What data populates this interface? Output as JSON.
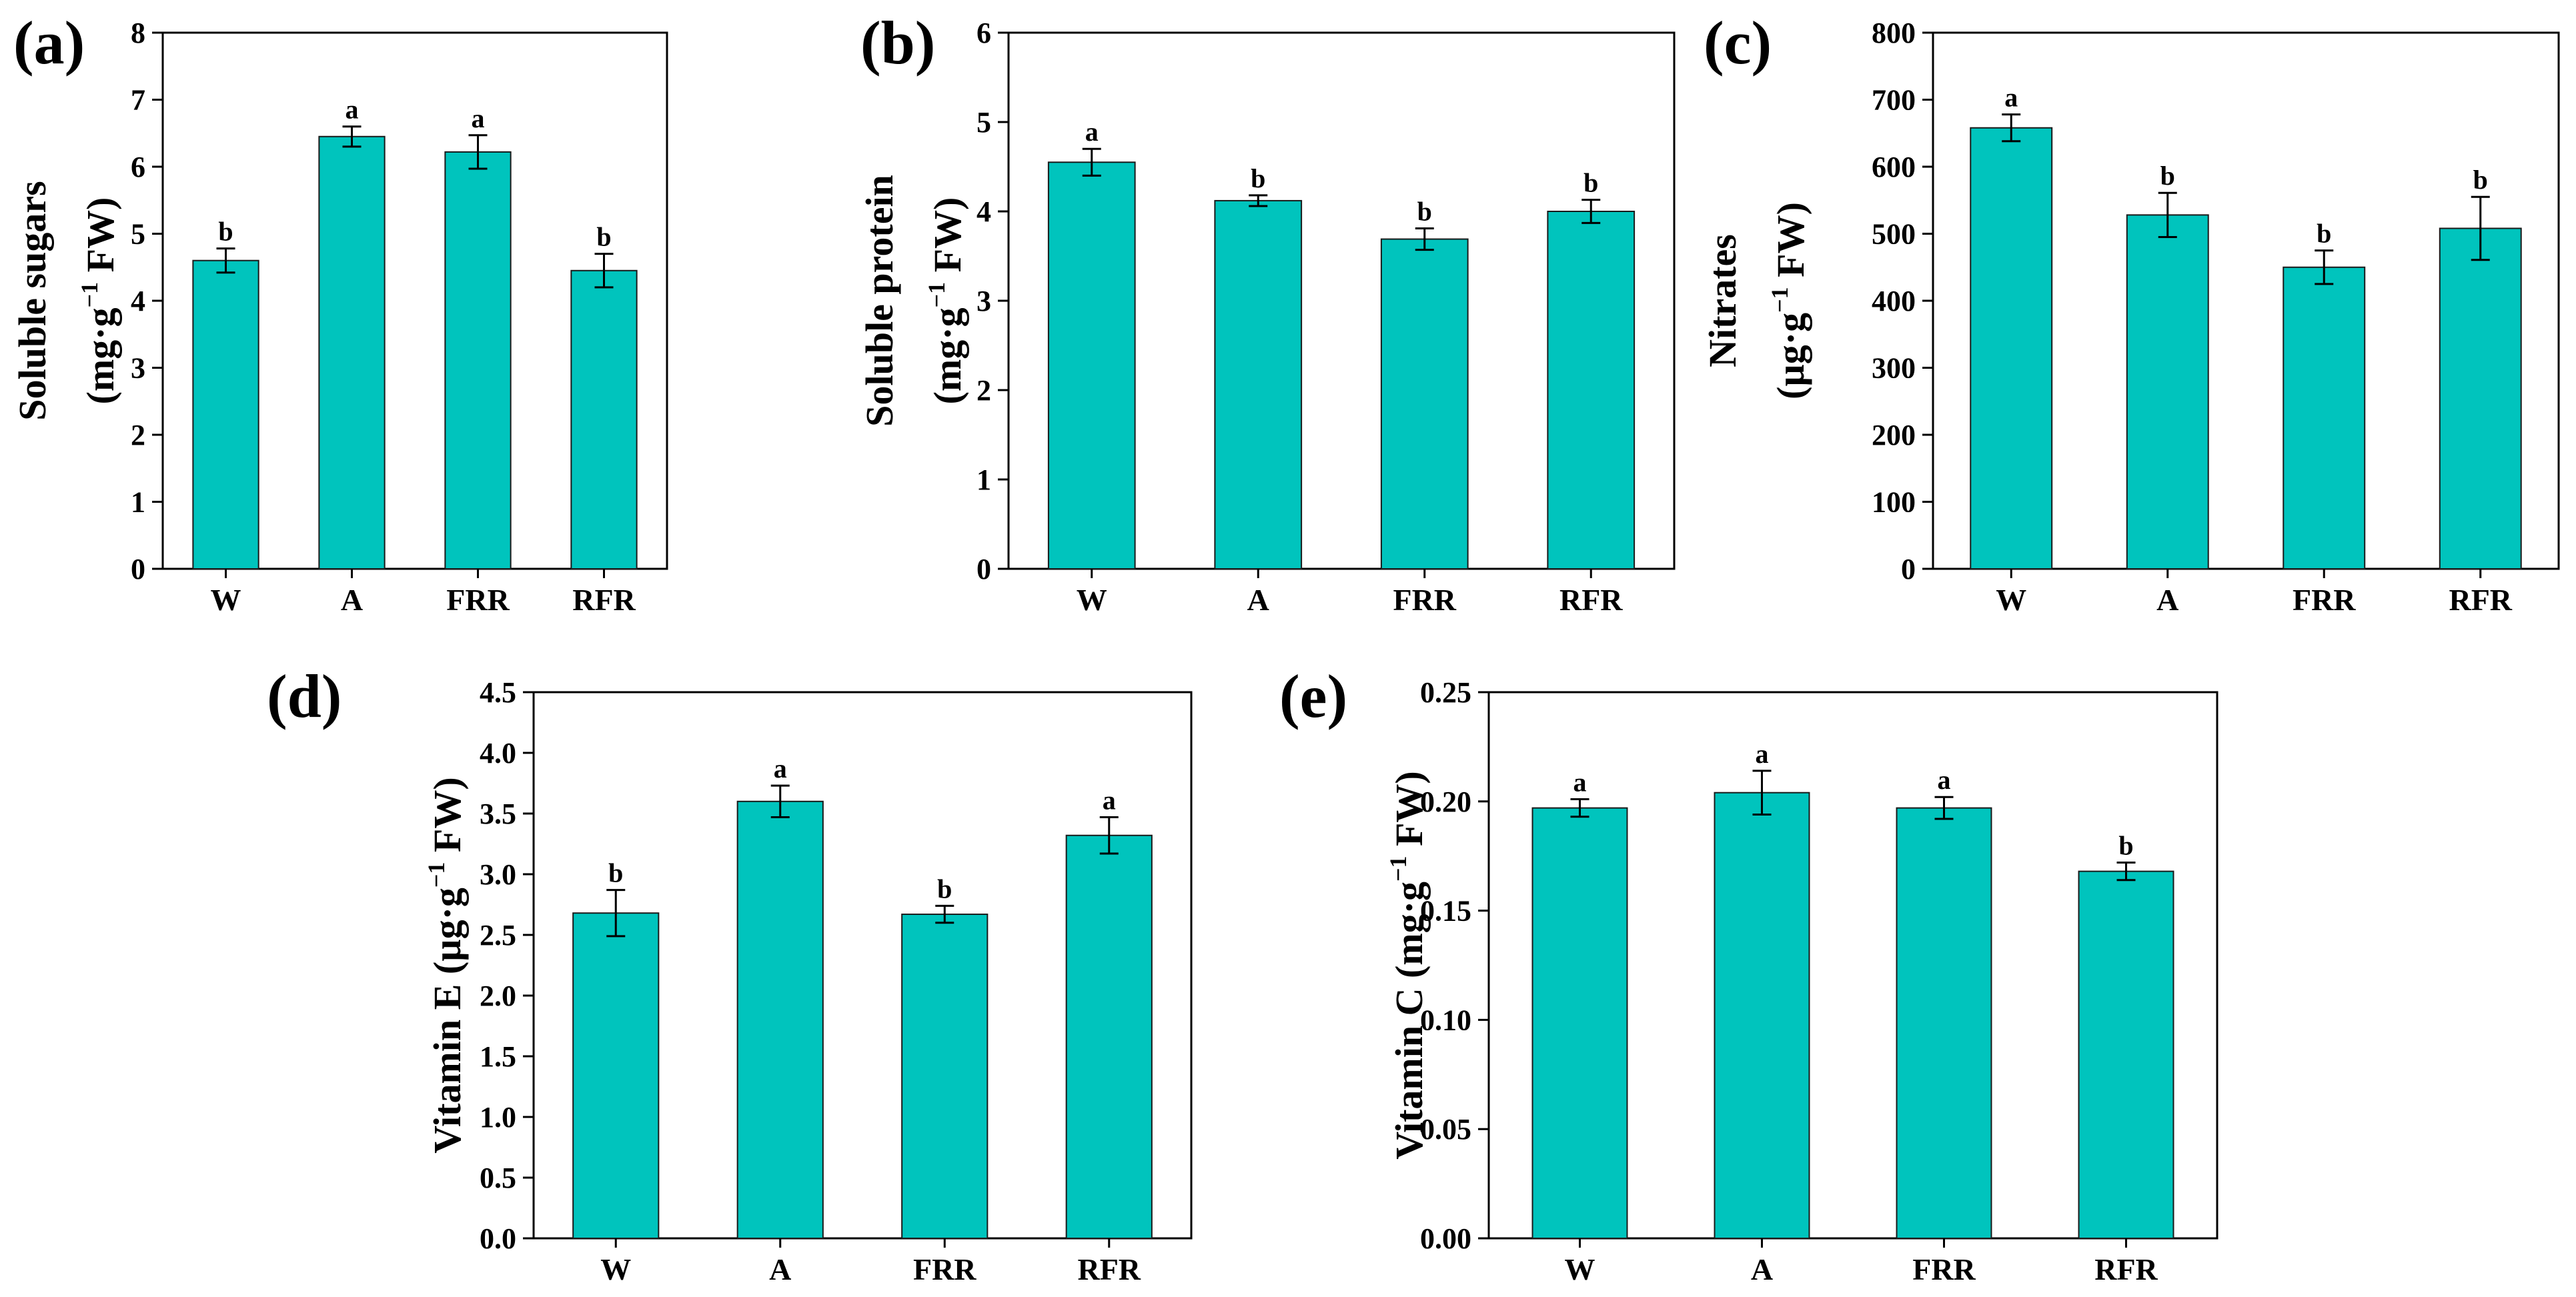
{
  "chart_data": [
    {
      "panel": "(a)",
      "type": "bar",
      "categories": [
        "W",
        "A",
        "FRR",
        "RFR"
      ],
      "values": [
        4.6,
        6.45,
        6.22,
        4.45
      ],
      "errors": [
        0.18,
        0.15,
        0.25,
        0.25
      ],
      "significance": [
        "b",
        "a",
        "a",
        "b"
      ],
      "ylim": [
        0,
        8
      ],
      "yticks": [
        "0",
        "1",
        "2",
        "3",
        "4",
        "5",
        "6",
        "7",
        "8"
      ],
      "ylabel_line1": "Soluble sugars",
      "ylabel_line2_pre": "(mg·g",
      "ylabel_sup": "−1",
      "ylabel_line2_post": " FW)",
      "bar_color": "#00c4bd"
    },
    {
      "panel": "(b)",
      "type": "bar",
      "categories": [
        "W",
        "A",
        "FRR",
        "RFR"
      ],
      "values": [
        4.55,
        4.12,
        3.69,
        4.0
      ],
      "errors": [
        0.15,
        0.06,
        0.12,
        0.13
      ],
      "significance": [
        "a",
        "b",
        "b",
        "b"
      ],
      "ylim": [
        0,
        6
      ],
      "yticks": [
        "0",
        "1",
        "2",
        "3",
        "4",
        "5",
        "6"
      ],
      "ylabel_line1": "Soluble protein",
      "ylabel_line2_pre": "(mg·g",
      "ylabel_sup": "−1",
      "ylabel_line2_post": " FW)",
      "bar_color": "#00c4bd"
    },
    {
      "panel": "(c)",
      "type": "bar",
      "categories": [
        "W",
        "A",
        "FRR",
        "RFR"
      ],
      "values": [
        658,
        528,
        450,
        508
      ],
      "errors": [
        20,
        33,
        25,
        47
      ],
      "significance": [
        "a",
        "b",
        "b",
        "b"
      ],
      "ylim": [
        0,
        800
      ],
      "yticks": [
        "0",
        "100",
        "200",
        "300",
        "400",
        "500",
        "600",
        "700",
        "800"
      ],
      "ylabel_line1": "Nitrates",
      "ylabel_line2_pre": "(µg·g",
      "ylabel_sup": "−1",
      "ylabel_line2_post": " FW)",
      "bar_color": "#00c4bd"
    },
    {
      "panel": "(d)",
      "type": "bar",
      "categories": [
        "W",
        "A",
        "FRR",
        "RFR"
      ],
      "values": [
        2.68,
        3.6,
        2.67,
        3.32
      ],
      "errors": [
        0.19,
        0.13,
        0.07,
        0.15
      ],
      "significance": [
        "b",
        "a",
        "b",
        "a"
      ],
      "ylim": [
        0,
        4.5
      ],
      "yticks": [
        "0.0",
        "0.5",
        "1.0",
        "1.5",
        "2.0",
        "2.5",
        "3.0",
        "3.5",
        "4.0",
        "4.5"
      ],
      "ylabel_line1": "",
      "ylabel_line2_pre": "Vitamin E (µg·g",
      "ylabel_sup": "−1",
      "ylabel_line2_post": " FW)",
      "bar_color": "#00c4bd"
    },
    {
      "panel": "(e)",
      "type": "bar",
      "categories": [
        "W",
        "A",
        "FRR",
        "RFR"
      ],
      "values": [
        0.197,
        0.204,
        0.197,
        0.168
      ],
      "errors": [
        0.004,
        0.01,
        0.005,
        0.004
      ],
      "significance": [
        "a",
        "a",
        "a",
        "b"
      ],
      "ylim": [
        0,
        0.25
      ],
      "yticks": [
        "0.00",
        "0.05",
        "0.10",
        "0.15",
        "0.20",
        "0.25"
      ],
      "ylabel_line1": "",
      "ylabel_line2_pre": "Vitamin C (mg·g",
      "ylabel_sup": "−1",
      "ylabel_line2_post": " FW)",
      "bar_color": "#00c4bd"
    }
  ]
}
